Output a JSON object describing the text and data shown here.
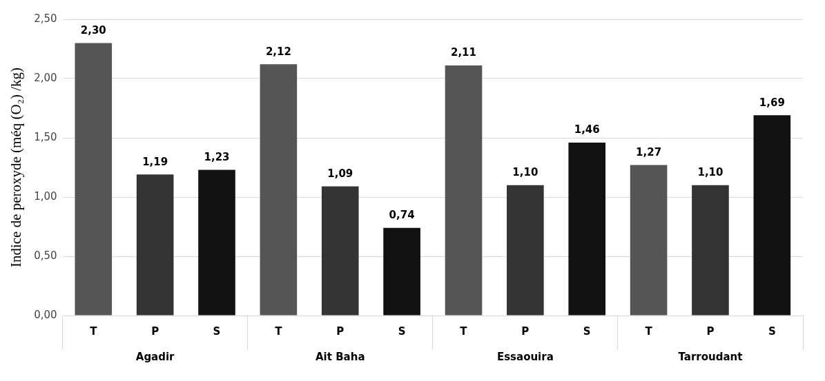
{
  "chart_data": {
    "type": "bar",
    "ylabel": "Indice de peroxyde (méq (O₂) /kg)",
    "categories": [
      "Agadir",
      "Ait Baha",
      "Essaouira",
      "Tarroudant"
    ],
    "series": [
      {
        "name": "T",
        "color": "#555555",
        "values": [
          2.3,
          2.12,
          2.11,
          1.27
        ],
        "value_labels": [
          "2,30",
          "2,12",
          "2,11",
          "1,27"
        ]
      },
      {
        "name": "P",
        "color": "#333333",
        "values": [
          1.19,
          1.09,
          1.1,
          1.1
        ],
        "value_labels": [
          "1,19",
          "1,09",
          "1,10",
          "1,10"
        ]
      },
      {
        "name": "S",
        "color": "#111111",
        "values": [
          1.23,
          0.74,
          1.46,
          1.69
        ],
        "value_labels": [
          "1,23",
          "0,74",
          "1,46",
          "1,69"
        ]
      }
    ],
    "ylim": [
      0,
      2.5
    ],
    "yticks": [
      {
        "value": 0,
        "label": "0,00"
      },
      {
        "value": 0.5,
        "label": "0,50"
      },
      {
        "value": 1,
        "label": "1,00"
      },
      {
        "value": 1.5,
        "label": "1,50"
      },
      {
        "value": 2,
        "label": "2,00"
      },
      {
        "value": 2.5,
        "label": "2,50"
      }
    ],
    "grid": "y",
    "legend": false
  }
}
